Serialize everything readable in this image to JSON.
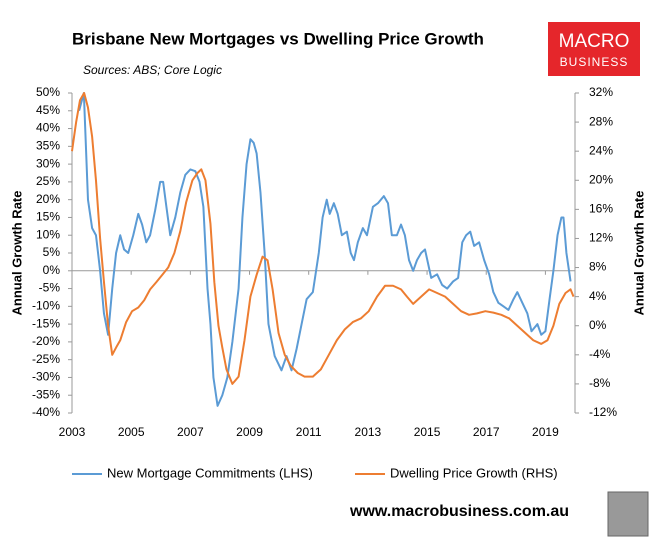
{
  "chart_data": {
    "type": "line",
    "title": "Brisbane New Mortgages vs Dwelling Price Growth",
    "subtitle": "Sources: ABS; Core Logic",
    "ylabel": "Annual Growth Rate",
    "y2label": "Annual Growth Rate",
    "xlim": [
      2003,
      2020
    ],
    "xticks": [
      2003,
      2005,
      2007,
      2009,
      2011,
      2013,
      2015,
      2017,
      2019
    ],
    "ylim": [
      -40,
      50
    ],
    "yticks": [
      {
        "value": -40,
        "label": "-40%"
      },
      {
        "value": -35,
        "label": "-35%"
      },
      {
        "value": -30,
        "label": "-30%"
      },
      {
        "value": -25,
        "label": "-25%"
      },
      {
        "value": -20,
        "label": "-20%"
      },
      {
        "value": -15,
        "label": "-15%"
      },
      {
        "value": -10,
        "label": "-10%"
      },
      {
        "value": -5,
        "label": "-5%"
      },
      {
        "value": 0,
        "label": "0%"
      },
      {
        "value": 5,
        "label": "5%"
      },
      {
        "value": 10,
        "label": "10%"
      },
      {
        "value": 15,
        "label": "15%"
      },
      {
        "value": 20,
        "label": "20%"
      },
      {
        "value": 25,
        "label": "25%"
      },
      {
        "value": 30,
        "label": "30%"
      },
      {
        "value": 35,
        "label": "35%"
      },
      {
        "value": 40,
        "label": "40%"
      },
      {
        "value": 45,
        "label": "45%"
      },
      {
        "value": 50,
        "label": "50%"
      }
    ],
    "y2lim": [
      -12,
      32
    ],
    "y2ticks": [
      {
        "value": -12,
        "label": "-12%"
      },
      {
        "value": -8,
        "label": "-8%"
      },
      {
        "value": -4,
        "label": "-4%"
      },
      {
        "value": 0,
        "label": "0%"
      },
      {
        "value": 4,
        "label": "4%"
      },
      {
        "value": 8,
        "label": "8%"
      },
      {
        "value": 12,
        "label": "12%"
      },
      {
        "value": 16,
        "label": "16%"
      },
      {
        "value": 20,
        "label": "20%"
      },
      {
        "value": 24,
        "label": "24%"
      },
      {
        "value": 28,
        "label": "28%"
      },
      {
        "value": 32,
        "label": "32%"
      }
    ],
    "grid": false,
    "legend": "bottom",
    "series": [
      {
        "name": "New Mortgage Commitments (LHS)",
        "color": "#5b9bd5",
        "axis": "y",
        "x": [
          2003.24,
          2003.4,
          2003.54,
          2003.68,
          2003.81,
          2003.95,
          2004.08,
          2004.22,
          2004.36,
          2004.49,
          2004.63,
          2004.76,
          2004.9,
          2005.07,
          2005.24,
          2005.37,
          2005.51,
          2005.64,
          2005.81,
          2005.98,
          2006.08,
          2006.19,
          2006.32,
          2006.49,
          2006.66,
          2006.83,
          2007.0,
          2007.17,
          2007.31,
          2007.44,
          2007.58,
          2007.68,
          2007.78,
          2007.92,
          2008.08,
          2008.25,
          2008.42,
          2008.63,
          2008.76,
          2008.9,
          2009.03,
          2009.14,
          2009.24,
          2009.37,
          2009.51,
          2009.64,
          2009.85,
          2010.08,
          2010.25,
          2010.42,
          2010.59,
          2010.76,
          2010.93,
          2011.14,
          2011.34,
          2011.47,
          2011.61,
          2011.71,
          2011.85,
          2011.98,
          2012.12,
          2012.29,
          2012.42,
          2012.53,
          2012.66,
          2012.83,
          2012.97,
          2013.17,
          2013.34,
          2013.54,
          2013.68,
          2013.81,
          2013.98,
          2014.12,
          2014.25,
          2014.39,
          2014.53,
          2014.66,
          2014.8,
          2014.93,
          2015.14,
          2015.34,
          2015.51,
          2015.68,
          2015.88,
          2016.05,
          2016.19,
          2016.32,
          2016.46,
          2016.59,
          2016.76,
          2016.93,
          2017.1,
          2017.24,
          2017.41,
          2017.58,
          2017.75,
          2017.92,
          2018.05,
          2018.22,
          2018.39,
          2018.53,
          2018.73,
          2018.86,
          2019.0,
          2019.14,
          2019.27,
          2019.41,
          2019.54,
          2019.61,
          2019.71,
          2019.85
        ],
        "values": [
          45,
          50,
          20,
          12,
          10,
          0,
          -12,
          -18,
          -5,
          5,
          10,
          6,
          5,
          10,
          16,
          13,
          8,
          10,
          17,
          25,
          25,
          18,
          10,
          15,
          22,
          27,
          28.5,
          28,
          25,
          18,
          -5,
          -15,
          -30,
          -38,
          -35,
          -30,
          -20,
          -5,
          15,
          30,
          37,
          36,
          33,
          22,
          5,
          -15,
          -24,
          -28,
          -24,
          -28,
          -22,
          -15,
          -8,
          -6,
          5,
          15,
          20,
          16,
          19,
          16,
          10,
          11,
          5,
          3,
          8,
          12,
          10,
          18,
          19,
          21,
          19,
          10,
          10,
          13,
          10,
          3,
          0,
          3,
          5,
          6,
          -2,
          -1,
          -4,
          -5,
          -3,
          -2,
          8,
          10,
          11,
          7,
          8,
          3,
          -1,
          -6,
          -9,
          -10,
          -11,
          -8,
          -6,
          -9,
          -12,
          -17,
          -15,
          -18,
          -17,
          -8,
          0,
          10,
          15,
          15,
          5,
          -3
        ]
      },
      {
        "name": "Dwelling Price Growth (RHS)",
        "color": "#ed7d31",
        "axis": "y2",
        "x": [
          2003.0,
          2003.14,
          2003.27,
          2003.41,
          2003.54,
          2003.68,
          2003.81,
          2003.95,
          2004.08,
          2004.22,
          2004.36,
          2004.49,
          2004.63,
          2004.83,
          2005.03,
          2005.24,
          2005.44,
          2005.64,
          2005.85,
          2006.05,
          2006.25,
          2006.46,
          2006.66,
          2006.86,
          2007.07,
          2007.24,
          2007.37,
          2007.51,
          2007.68,
          2007.81,
          2007.95,
          2008.08,
          2008.22,
          2008.42,
          2008.63,
          2008.83,
          2009.03,
          2009.24,
          2009.44,
          2009.61,
          2009.78,
          2009.98,
          2010.19,
          2010.39,
          2010.63,
          2010.86,
          2011.14,
          2011.41,
          2011.68,
          2011.95,
          2012.22,
          2012.49,
          2012.76,
          2013.03,
          2013.31,
          2013.58,
          2013.85,
          2014.12,
          2014.32,
          2014.53,
          2014.8,
          2015.07,
          2015.34,
          2015.61,
          2015.88,
          2016.15,
          2016.42,
          2016.69,
          2016.97,
          2017.24,
          2017.51,
          2017.78,
          2018.05,
          2018.32,
          2018.59,
          2018.86,
          2019.07,
          2019.27,
          2019.47,
          2019.68,
          2019.85,
          2019.95
        ],
        "values": [
          24,
          28,
          31,
          32,
          30,
          26,
          20,
          12,
          6,
          0,
          -4,
          -3,
          -2,
          0.5,
          2,
          2.5,
          3.5,
          5,
          6,
          7,
          8,
          10,
          13,
          17,
          20,
          21,
          21.5,
          20,
          14,
          6,
          0,
          -3,
          -6,
          -8,
          -7,
          -2,
          4,
          7,
          9.5,
          9,
          5,
          -1,
          -4,
          -5.5,
          -6.5,
          -7,
          -7,
          -6,
          -4,
          -2,
          -0.5,
          0.5,
          1,
          2,
          4,
          5.5,
          5.5,
          5,
          4,
          3,
          4,
          5,
          4.5,
          4,
          3,
          2,
          1.5,
          1.7,
          2,
          1.8,
          1.5,
          1,
          0,
          -1,
          -2,
          -2.5,
          -2,
          0,
          3,
          4.5,
          5,
          4
        ]
      }
    ]
  },
  "logo": {
    "line1": "MACRO",
    "line2": "BUSINESS"
  },
  "footer": {
    "url": "www.macrobusiness.com.au"
  }
}
